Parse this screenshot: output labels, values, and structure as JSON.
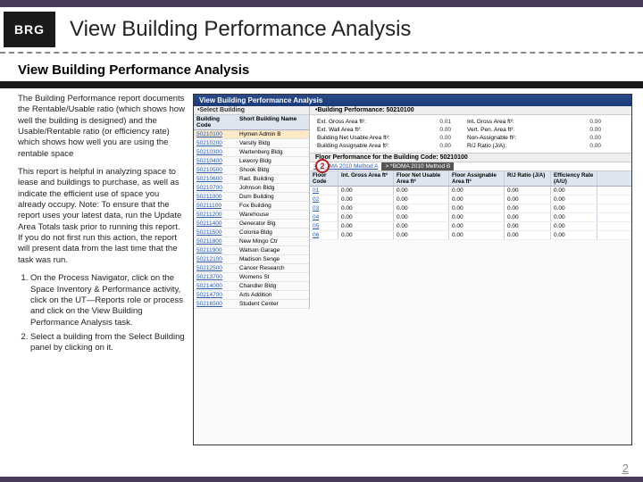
{
  "logo": "BRG",
  "pageTitle": "View Building Performance Analysis",
  "sectionTitle": "View Building Performance Analysis",
  "para1": "The Building Performance report documents the Rentable/Usable ratio (which shows how well the building is designed) and the Usable/Rentable ratio (or efficiency rate) which shows how well you are using the rentable space",
  "para2": "This report is helpful in analyzing space to lease and buildings to purchase, as well as indicate the efficient use of space you already occupy. Note: To ensure that the report uses your latest data, run the Update Area Totals task prior to running this report. If you do not first run this action, the report will present data from the last time that the task was run.",
  "step1": "On the Process Navigator, click on the Space Inventory & Performance activity, click on the UT—Reports role or process and click on the View Building Performance Analysis task.",
  "step2": "Select a building from the Select Building panel by clicking on it.",
  "pageNum": "2",
  "app": {
    "titlebar": "View Building Performance Analysis",
    "selectHdr": "•Select Building",
    "perfHdr": "•Building Performance: 50210100",
    "colCode": "Building Code",
    "colName": "Short Building Name",
    "buildings": [
      {
        "code": "50210100",
        "name": "Hymen Admin B",
        "sel": true
      },
      {
        "code": "50210200",
        "name": "Varsity Bldg"
      },
      {
        "code": "50210300",
        "name": "Wartenberg Bldg"
      },
      {
        "code": "50210400",
        "name": "Lewory Bldg"
      },
      {
        "code": "50210500",
        "name": "Shook Bldg"
      },
      {
        "code": "50210600",
        "name": "Rad. Building"
      },
      {
        "code": "50210700",
        "name": "Johnson Bldg"
      },
      {
        "code": "50211000",
        "name": "Dum Building"
      },
      {
        "code": "50211100",
        "name": "Fox Building"
      },
      {
        "code": "50211200",
        "name": "Warehouse"
      },
      {
        "code": "50211400",
        "name": "Generator Blg"
      },
      {
        "code": "50211500",
        "name": "Colonia Bldg"
      },
      {
        "code": "50211800",
        "name": "New Mingo Ctr"
      },
      {
        "code": "50211900",
        "name": "Watson Garage"
      },
      {
        "code": "50212100",
        "name": "Madison Senge"
      },
      {
        "code": "50212500",
        "name": "Cancer Research"
      },
      {
        "code": "50213700",
        "name": "Womens St"
      },
      {
        "code": "50214000",
        "name": "Chandler Bldg"
      },
      {
        "code": "50214700",
        "name": "Arts Addition"
      },
      {
        "code": "50216500",
        "name": "Student Center"
      }
    ],
    "stats": [
      {
        "l": "Ext. Gross Area ft²:",
        "v": "0.01"
      },
      {
        "l": "Int. Gross Area ft²:",
        "v": "0.00"
      },
      {
        "l": "Ext. Wall Area ft²:",
        "v": "0.00"
      },
      {
        "l": "Vert. Pen. Area ft²:",
        "v": "0.00"
      },
      {
        "l": "Building Net Usable Area ft²:",
        "v": "0.00"
      },
      {
        "l": "Non-Assignable ft²:",
        "v": "0.00"
      },
      {
        "l": "Building Assignable Area ft²:",
        "v": "0.00"
      },
      {
        "l": "R/J Ratio (J/A):",
        "v": "0.00"
      }
    ],
    "floorHdr": "Floor Performance for the Building Code: 50210100",
    "methodA": "> *BOMA 2010 Method A",
    "methodB": "> *BOMA 2010 Method B",
    "tcols": [
      "Floor Code",
      "Int. Gross Area ft²",
      "Floor Net Usable Area ft²",
      "Floor Assignable Area ft²",
      "R/J Ratio (J/A)",
      "Efficiency Rate (A/U)"
    ],
    "trows": [
      [
        "01",
        "0.00",
        "0.00",
        "0.00",
        "0.00",
        "0.00"
      ],
      [
        "02",
        "0.00",
        "0.00",
        "0.00",
        "0.00",
        "0.00"
      ],
      [
        "03",
        "0.00",
        "0.00",
        "0.00",
        "0.00",
        "0.00"
      ],
      [
        "04",
        "0.00",
        "0.00",
        "0.00",
        "0.00",
        "0.00"
      ],
      [
        "05",
        "0.00",
        "0.00",
        "0.00",
        "0.00",
        "0.00"
      ],
      [
        "06",
        "0.00",
        "0.00",
        "0.00",
        "0.00",
        "0.00"
      ]
    ]
  }
}
